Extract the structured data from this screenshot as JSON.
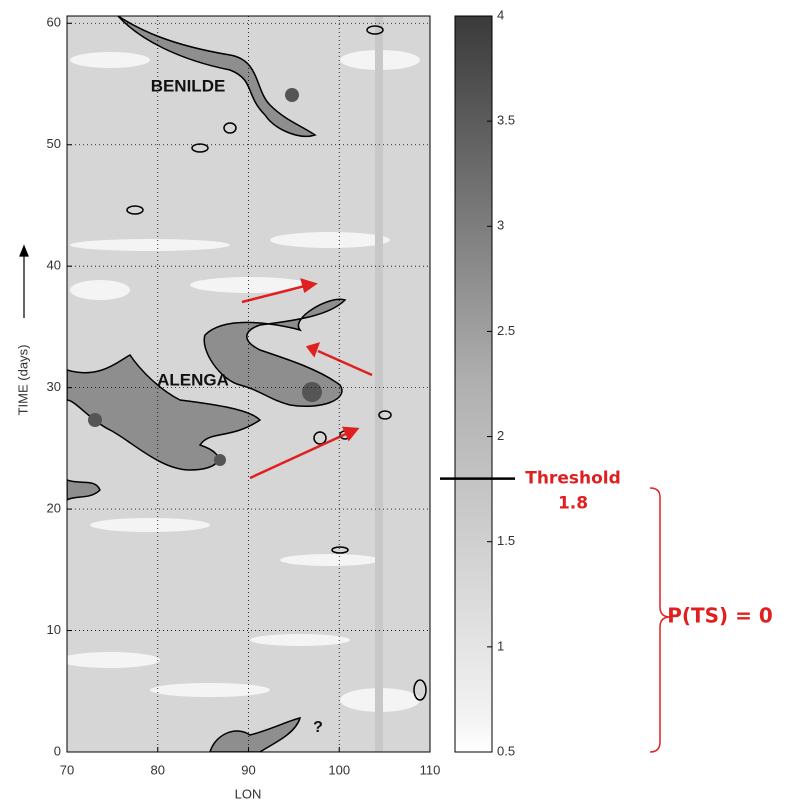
{
  "chart_data": {
    "type": "heatmap",
    "xlabel": "LON",
    "ylabel": "TIME (days)",
    "xlim": [
      70,
      110
    ],
    "xticks": [
      70,
      80,
      90,
      100,
      110
    ],
    "ylim": [
      0,
      60.6
    ],
    "yticks": [
      0,
      10,
      20,
      30,
      40,
      50,
      60
    ],
    "grid": true,
    "colorbar": {
      "lim": [
        0.5,
        4
      ],
      "ticks": [
        0.5,
        1,
        1.5,
        2,
        2.5,
        3,
        3.5,
        4
      ]
    },
    "annotations": [
      "BENILDE",
      "ALENGA",
      "?"
    ],
    "threshold": {
      "label": "Threshold",
      "value": 1.8
    },
    "bracket_label": "P(TS) = 0"
  }
}
